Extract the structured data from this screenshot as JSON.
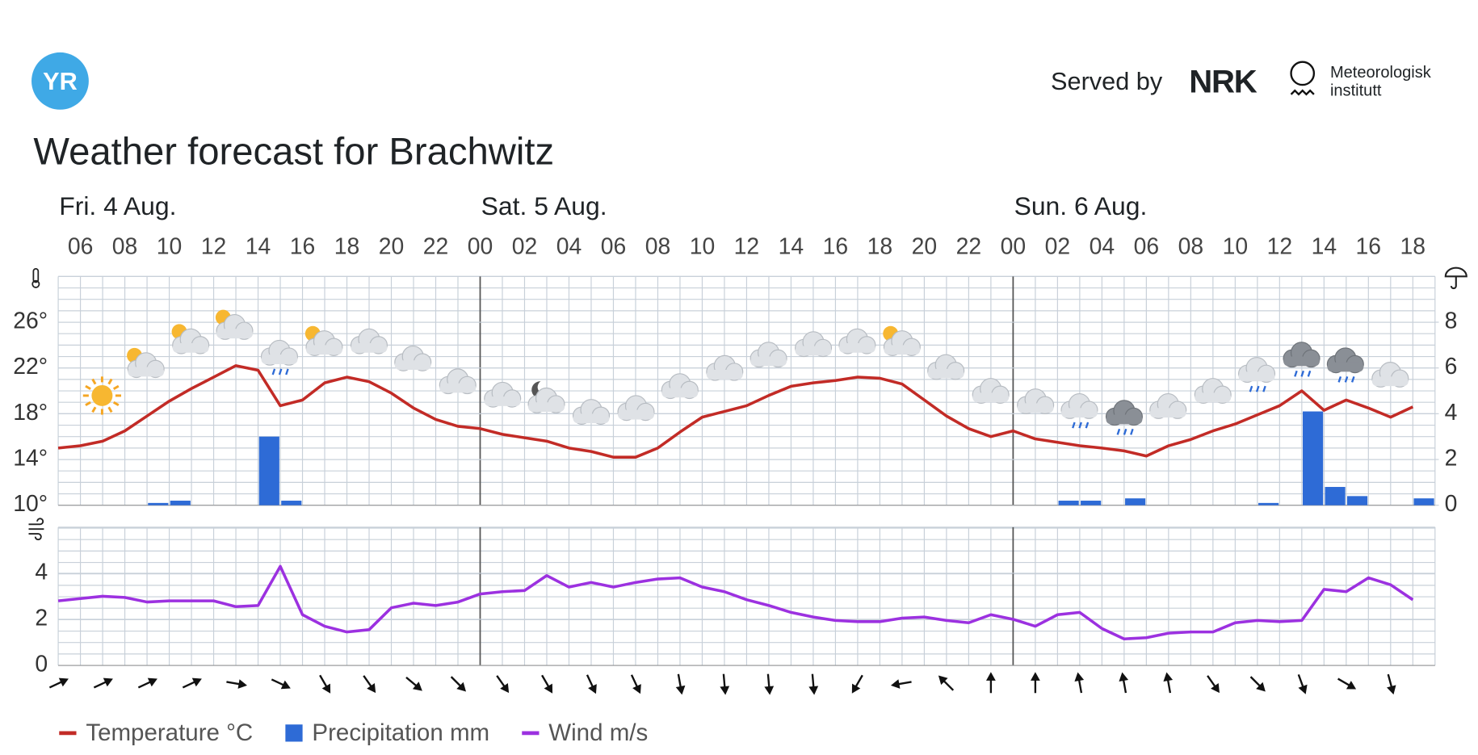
{
  "header": {
    "logo": "YR",
    "served_by": "Served by",
    "partner_1": "NRK",
    "partner_2_line1": "Meteorologisk",
    "partner_2_line2": "institutt",
    "title": "Weather forecast for Brachwitz"
  },
  "chart_data": [
    {
      "type": "bar-line",
      "days": [
        "Fri. 4 Aug.",
        "Sat. 5 Aug.",
        "Sun. 6 Aug."
      ],
      "categories": [
        null,
        "06",
        null,
        "08",
        null,
        "10",
        null,
        "12",
        null,
        "14",
        null,
        "16",
        null,
        "18",
        null,
        "20",
        null,
        "22",
        null,
        "00",
        null,
        "02",
        null,
        "04",
        null,
        "06",
        null,
        "08",
        null,
        "10",
        null,
        "12",
        null,
        "14",
        null,
        "16",
        null,
        "18",
        null,
        "20",
        null,
        "22",
        null,
        "00",
        null,
        "02",
        null,
        "04",
        null,
        "06",
        null,
        "08",
        null,
        "10",
        null,
        "12",
        null,
        "14",
        null,
        "16",
        null,
        "18"
      ],
      "series": [
        {
          "name": "Temperature °C",
          "type": "line",
          "color": "#c22b26",
          "values": [
            15.0,
            15.2,
            15.6,
            16.5,
            17.8,
            19.1,
            20.2,
            21.2,
            22.2,
            21.8,
            18.7,
            19.2,
            20.7,
            21.2,
            20.8,
            19.8,
            18.5,
            17.5,
            16.9,
            16.7,
            16.2,
            15.9,
            15.6,
            15.0,
            14.7,
            14.2,
            14.2,
            15.0,
            16.4,
            17.7,
            18.2,
            18.7,
            19.6,
            20.4,
            20.7,
            20.9,
            21.2,
            21.1,
            20.6,
            19.2,
            17.8,
            16.7,
            16.0,
            16.5,
            15.8,
            15.5,
            15.2,
            15.0,
            14.75,
            14.3,
            15.2,
            15.75,
            16.5,
            17.1,
            17.9,
            18.7,
            20.0,
            18.3,
            19.2,
            18.5,
            17.7,
            18.6
          ]
        },
        {
          "name": "Precipitation mm",
          "type": "bar",
          "axis": "y2",
          "color": "#2e6bd6",
          "values": [
            0,
            0,
            0,
            0,
            0.1,
            0.2,
            0,
            0,
            0,
            3.0,
            0.2,
            0,
            0,
            0,
            0,
            0,
            0,
            0,
            0,
            0,
            0,
            0,
            0,
            0,
            0,
            0,
            0,
            0,
            0,
            0,
            0,
            0,
            0,
            0,
            0,
            0,
            0,
            0,
            0,
            0,
            0,
            0,
            0,
            0,
            0,
            0.2,
            0.2,
            0,
            0.3,
            0,
            0,
            0,
            0,
            0,
            0.1,
            0,
            4.1,
            0.8,
            0.4,
            0,
            0,
            0.3
          ]
        }
      ],
      "ylim": [
        10,
        30
      ],
      "yticks": [
        {
          "value": 10,
          "label": "10°"
        },
        {
          "value": 14,
          "label": "14°"
        },
        {
          "value": 18,
          "label": "18°"
        },
        {
          "value": 22,
          "label": "22°"
        },
        {
          "value": 26,
          "label": "26°"
        }
      ],
      "y2lim": [
        0,
        10
      ],
      "y2ticks": [
        0,
        2,
        4,
        6,
        8
      ],
      "grid": true
    },
    {
      "type": "line",
      "series": [
        {
          "name": "Wind m/s",
          "color": "#9c31e0",
          "values": [
            2.8,
            2.9,
            3.0,
            2.95,
            2.75,
            2.8,
            2.8,
            2.8,
            2.55,
            2.6,
            4.3,
            2.2,
            1.7,
            1.45,
            1.55,
            2.5,
            2.7,
            2.6,
            2.75,
            3.1,
            3.2,
            3.25,
            3.9,
            3.4,
            3.6,
            3.4,
            3.6,
            3.75,
            3.8,
            3.4,
            3.2,
            2.85,
            2.6,
            2.3,
            2.1,
            1.95,
            1.9,
            1.9,
            2.05,
            2.1,
            1.95,
            1.85,
            2.2,
            2.0,
            1.7,
            2.2,
            2.3,
            1.6,
            1.15,
            1.2,
            1.4,
            1.45,
            1.45,
            1.85,
            1.95,
            1.9,
            1.95,
            3.3,
            3.2,
            3.8,
            3.5,
            2.85
          ]
        }
      ],
      "wind_direction": [
        65,
        null,
        65,
        null,
        65,
        null,
        65,
        null,
        100,
        null,
        115,
        null,
        150,
        null,
        145,
        null,
        130,
        null,
        135,
        null,
        145,
        null,
        150,
        null,
        155,
        null,
        155,
        null,
        170,
        null,
        175,
        null,
        175,
        null,
        175,
        null,
        210,
        null,
        260,
        null,
        315,
        null,
        0,
        null,
        0,
        null,
        350,
        null,
        350,
        null,
        350,
        null,
        145,
        null,
        135,
        null,
        160,
        null,
        120,
        null,
        165,
        null
      ],
      "ylim": [
        0,
        6
      ],
      "yticks": [
        0,
        2,
        4
      ],
      "grid": true
    }
  ]
}
